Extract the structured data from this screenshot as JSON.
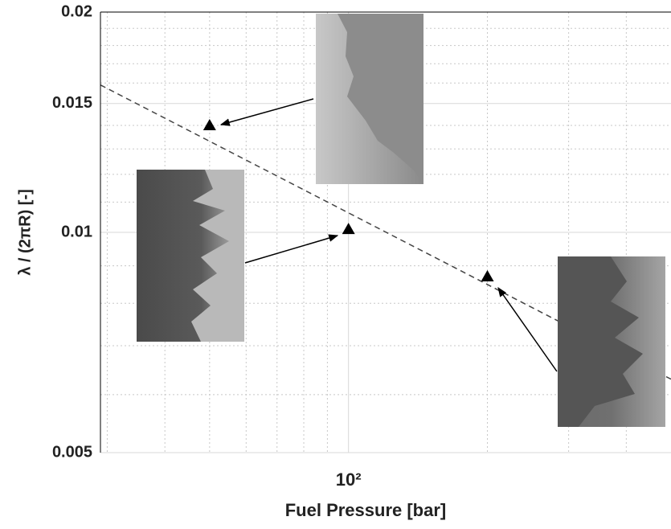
{
  "chart_data": {
    "type": "scatter",
    "xlabel": "Fuel Pressure [bar]",
    "ylabel": "λ / (2πR) [-]",
    "xscale": "log",
    "yscale": "log",
    "xlim": [
      29,
      500
    ],
    "ylim": [
      0.005,
      0.02
    ],
    "xticks": [
      {
        "value": 100,
        "label": "10²"
      }
    ],
    "xminorticks": [
      30,
      40,
      50,
      60,
      70,
      80,
      90,
      200,
      300,
      400
    ],
    "yticks": [
      0.005,
      0.01,
      0.015,
      0.02
    ],
    "yminorticks": [
      0.006,
      0.007,
      0.008,
      0.009,
      0.011,
      0.012,
      0.013,
      0.014,
      0.016,
      0.017,
      0.018,
      0.019
    ],
    "grid": true,
    "series": [
      {
        "kind": "points",
        "color": "#000000",
        "x": [
          50,
          100,
          200
        ],
        "values": [
          0.014,
          0.0101,
          0.0087
        ]
      },
      {
        "kind": "fit",
        "color": "#444444",
        "x": [
          29,
          500
        ],
        "values": [
          0.0159,
          0.0063
        ]
      }
    ]
  }
}
